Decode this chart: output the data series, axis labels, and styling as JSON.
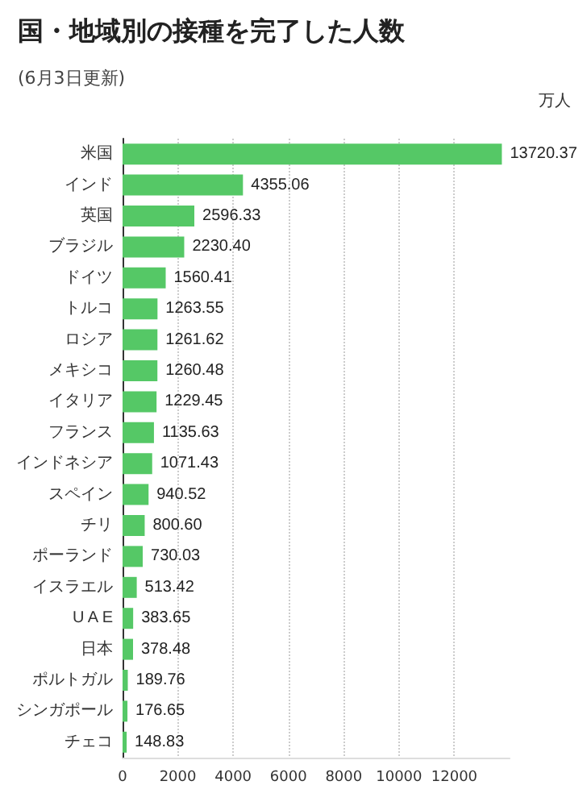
{
  "chart_data": {
    "type": "bar",
    "orientation": "horizontal",
    "title": "国・地域別の接種を完了した人数",
    "subtitle": "(6月3日更新)",
    "xlabel": "万人",
    "categories": [
      "米国",
      "インド",
      "英国",
      "ブラジル",
      "ドイツ",
      "トルコ",
      "ロシア",
      "メキシコ",
      "イタリア",
      "フランス",
      "インドネシア",
      "スペイン",
      "チリ",
      "ポーランド",
      "イスラエル",
      "U A E",
      "日本",
      "ポルトガル",
      "シンガポール",
      "チェコ"
    ],
    "values": [
      13720.37,
      4355.06,
      2596.33,
      2230.4,
      1560.41,
      1263.55,
      1261.62,
      1260.48,
      1229.45,
      1135.63,
      1071.43,
      940.52,
      800.6,
      730.03,
      513.42,
      383.65,
      378.48,
      189.76,
      176.65,
      148.83
    ],
    "value_labels": [
      "13720.37",
      "4355.06",
      "2596.33",
      "2230.40",
      "1560.41",
      "1263.55",
      "1261.62",
      "1260.48",
      "1229.45",
      "1135.63",
      "1071.43",
      "940.52",
      "800.60",
      "730.03",
      "513.42",
      "383.65",
      "378.48",
      "189.76",
      "176.65",
      "148.83"
    ],
    "color": "#55c866",
    "xlim": [
      0,
      14000
    ],
    "xticks": [
      0,
      2000,
      4000,
      6000,
      8000,
      10000,
      12000
    ],
    "grid": "x"
  }
}
